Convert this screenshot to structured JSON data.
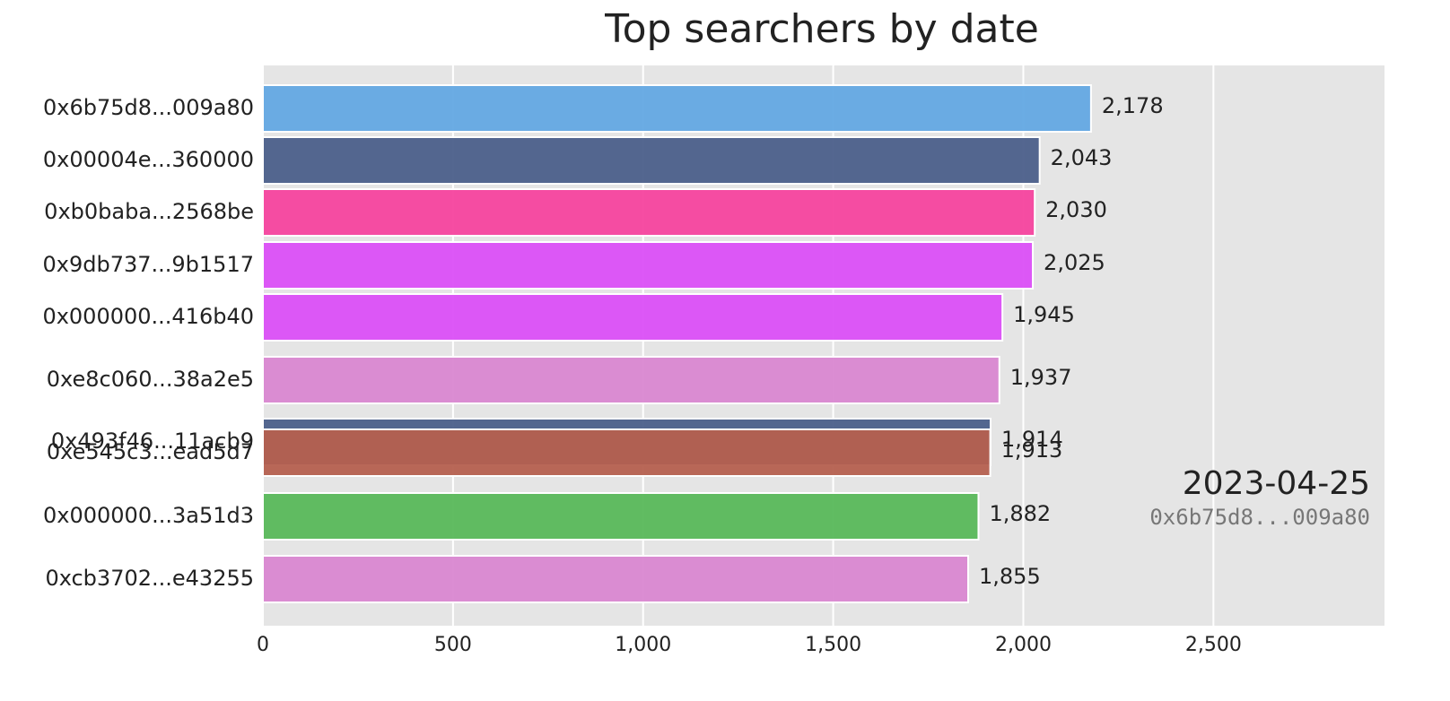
{
  "chart_data": {
    "type": "bar",
    "orientation": "horizontal",
    "title": "Top searchers by date",
    "categories": [
      "0x6b75d8...009a80",
      "0x00004e...360000",
      "0xb0baba...2568be",
      "0x9db737...9b1517",
      "0x000000...416b40",
      "0xe8c060...38a2e5",
      "0x493f46...11acb9",
      "0xe545c3...ead5d7",
      "0x000000...3a51d3",
      "0xcb3702...e43255"
    ],
    "values": [
      2178,
      2043,
      2030,
      2025,
      1945,
      1937,
      1914,
      1913,
      1882,
      1855
    ],
    "value_labels": [
      "2,178",
      "2,043",
      "2,030",
      "2,025",
      "1,945",
      "1,937",
      "1,914",
      "1,913",
      "1,882",
      "1,855"
    ],
    "colors": [
      "#63a8e3",
      "#4b5f8a",
      "#f5439e",
      "#db4ff7",
      "#db4ff7",
      "#d987d1",
      "#4b5f8a",
      "#b5604f",
      "#58b85a",
      "#d987d1"
    ],
    "xlim": [
      0,
      2950
    ],
    "xticks": [
      0,
      500,
      {
        "value": 1000,
        "label": "1,000"
      },
      {
        "value": 1500,
        "label": "1,500"
      },
      {
        "value": 2000,
        "label": "2,000"
      },
      {
        "value": 2500,
        "label": "2,500"
      }
    ],
    "grid": true,
    "annotations": [
      "2023-04-25",
      "0x6b75d8...009a80"
    ]
  }
}
